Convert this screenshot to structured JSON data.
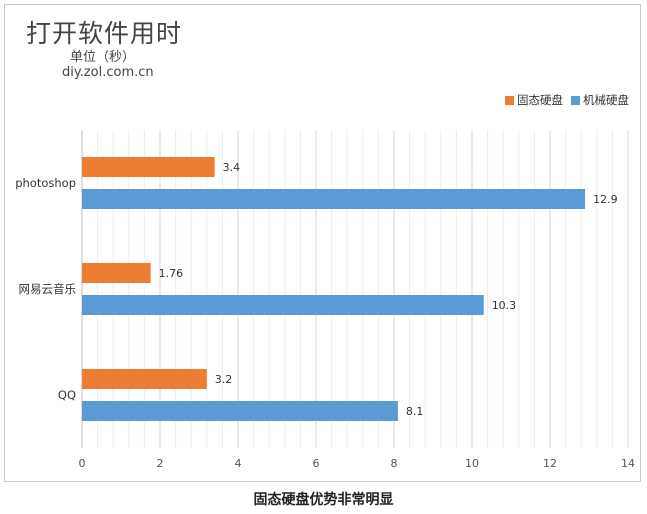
{
  "chart_data": {
    "type": "bar",
    "orientation": "horizontal",
    "title": "打开软件用时",
    "unit_label": "单位（秒）",
    "source": "diy.zol.com.cn",
    "caption": "固态硬盘优势非常明显",
    "categories": [
      "photoshop",
      "网易云音乐",
      "QQ"
    ],
    "series": [
      {
        "name": "固态硬盘",
        "color": "#ED7D31",
        "values": [
          3.4,
          1.76,
          3.2
        ],
        "labels": [
          "3.4",
          "1.76",
          "3.2"
        ]
      },
      {
        "name": "机械硬盘",
        "color": "#5B9BD5",
        "values": [
          12.9,
          10.3,
          8.1
        ],
        "labels": [
          "12.9",
          "10.3",
          "8.1"
        ]
      }
    ],
    "xlim": [
      0,
      14
    ],
    "xticks": [
      "0",
      "2",
      "4",
      "6",
      "8",
      "10",
      "12",
      "14"
    ],
    "grid": true,
    "legend_position": "top-right"
  }
}
